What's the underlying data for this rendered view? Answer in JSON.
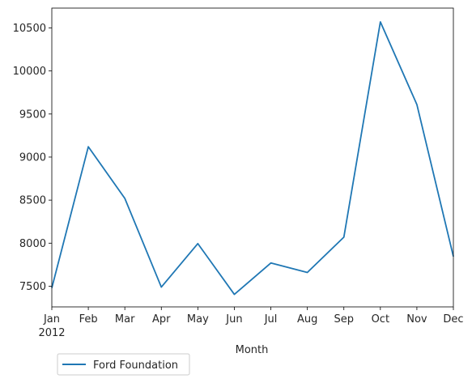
{
  "chart_data": {
    "type": "line",
    "x": [
      "Jan",
      "Feb",
      "Mar",
      "Apr",
      "May",
      "Jun",
      "Jul",
      "Aug",
      "Sep",
      "Oct",
      "Nov",
      "Dec"
    ],
    "year_label": "2012",
    "series": [
      {
        "name": "Ford Foundation",
        "values": [
          7480,
          9120,
          8520,
          7490,
          7995,
          7405,
          7770,
          7660,
          8070,
          10570,
          9610,
          7845
        ],
        "color": "#1f77b4"
      }
    ],
    "xlabel": "Month",
    "ylabel": "",
    "title": "",
    "ylim": [
      7260,
      10730
    ],
    "yticks": [
      7500,
      8000,
      8500,
      9000,
      9500,
      10000,
      10500
    ],
    "grid": false,
    "legend_position": "below-left"
  }
}
